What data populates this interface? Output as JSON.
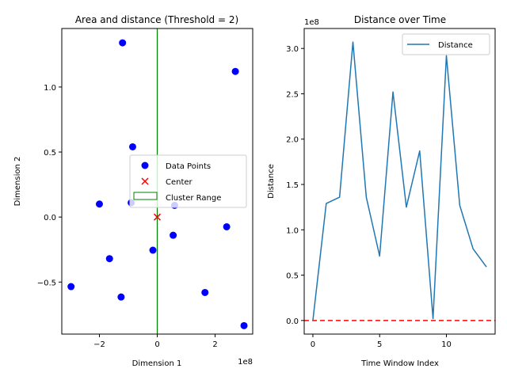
{
  "chart_data": [
    {
      "type": "scatter",
      "title": "Area and distance (Threshold = 2)",
      "xlabel": "Dimension 1",
      "ylabel": "Dimension 2",
      "x_offset_label": "1e8",
      "xlim": [
        -3.3,
        3.3
      ],
      "ylim": [
        -0.9,
        1.45
      ],
      "x_ticks": [
        -2,
        0,
        2
      ],
      "x_tick_labels": [
        "−2",
        "0",
        "2"
      ],
      "y_ticks": [
        -0.5,
        0.0,
        0.5,
        1.0
      ],
      "y_tick_labels": [
        "−0.5",
        "0.0",
        "0.5",
        "1.0"
      ],
      "grid": false,
      "legend_position": "center-right",
      "series": [
        {
          "name": "Data Points",
          "color": "#0000ff",
          "marker": "circle",
          "points": [
            {
              "x": -1.2,
              "y": 1.34
            },
            {
              "x": 2.7,
              "y": 1.12
            },
            {
              "x": -0.85,
              "y": 0.54
            },
            {
              "x": -2.0,
              "y": 0.1
            },
            {
              "x": -0.9,
              "y": 0.11
            },
            {
              "x": 0.6,
              "y": 0.09
            },
            {
              "x": 2.4,
              "y": -0.075
            },
            {
              "x": 0.55,
              "y": -0.14
            },
            {
              "x": -0.15,
              "y": -0.255
            },
            {
              "x": -1.65,
              "y": -0.32
            },
            {
              "x": -2.98,
              "y": -0.535
            },
            {
              "x": 1.65,
              "y": -0.58
            },
            {
              "x": -1.25,
              "y": -0.615
            },
            {
              "x": 3.0,
              "y": -0.835
            }
          ]
        },
        {
          "name": "Center",
          "color": "#ff0000",
          "marker": "x",
          "points": [
            {
              "x": 0.0,
              "y": 0.0
            }
          ]
        }
      ],
      "cluster_range": {
        "name": "Cluster Range",
        "color": "#008000",
        "x": 0.0
      }
    },
    {
      "type": "line",
      "title": "Distance over Time",
      "xlabel": "Time Window Index",
      "ylabel": "Distance",
      "y_offset_label": "1e8",
      "xlim": [
        -0.65,
        13.65
      ],
      "ylim": [
        -0.15,
        3.22
      ],
      "x_ticks": [
        0,
        5,
        10
      ],
      "x_tick_labels": [
        "0",
        "5",
        "10"
      ],
      "y_ticks": [
        0.0,
        0.5,
        1.0,
        1.5,
        2.0,
        2.5,
        3.0
      ],
      "y_tick_labels": [
        "0.0",
        "0.5",
        "1.0",
        "1.5",
        "2.0",
        "2.5",
        "3.0"
      ],
      "grid": false,
      "legend_position": "top-right",
      "series": [
        {
          "name": "Distance",
          "color": "#1f77b4",
          "x": [
            0,
            1,
            2,
            3,
            4,
            5,
            6,
            7,
            8,
            9,
            10,
            11,
            12,
            13
          ],
          "y": [
            0.0,
            1.29,
            1.36,
            3.07,
            1.36,
            0.71,
            2.52,
            1.25,
            1.87,
            0.02,
            2.92,
            1.27,
            0.79,
            0.59
          ]
        }
      ],
      "threshold_line": {
        "color": "#ff0000",
        "style": "dashed",
        "y": 0.0
      }
    }
  ]
}
